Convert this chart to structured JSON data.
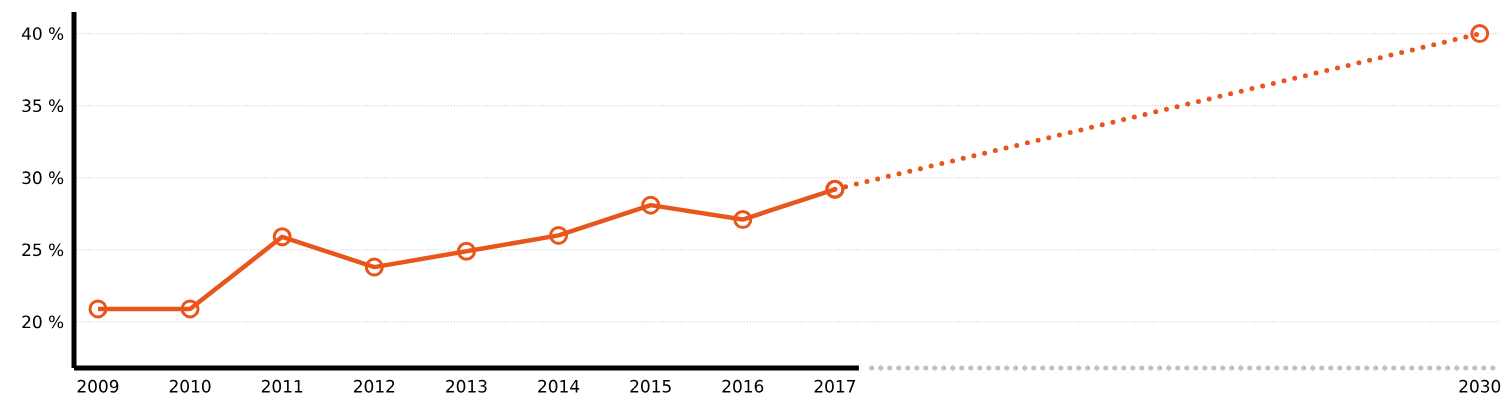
{
  "chart_data": {
    "type": "line",
    "categories": [
      "2009",
      "2010",
      "2011",
      "2012",
      "2013",
      "2014",
      "2015",
      "2016",
      "2017",
      null,
      null,
      null,
      null,
      null,
      null,
      "2030"
    ],
    "series": [
      {
        "color": "#e8561c",
        "line_style": "solid",
        "marker": "circle",
        "values": [
          20.9,
          20.9,
          25.9,
          23.8,
          24.9,
          26.0,
          28.1,
          27.1,
          29.2,
          null,
          null,
          null,
          null,
          null,
          null,
          null
        ]
      },
      {
        "color": "#e8561c",
        "line_style": "dotted",
        "marker": "circle",
        "values": [
          null,
          null,
          null,
          null,
          null,
          null,
          null,
          null,
          29.2,
          null,
          null,
          null,
          null,
          null,
          null,
          40
        ]
      }
    ],
    "ylim": [
      16.8,
      41.5
    ],
    "yticks": [
      {
        "value": 20,
        "label": "20 %"
      },
      {
        "value": 25,
        "label": "25 %"
      },
      {
        "value": 30,
        "label": "30 %"
      },
      {
        "value": 35,
        "label": "35 %"
      },
      {
        "value": 40,
        "label": "40 %"
      }
    ],
    "grid": "y"
  }
}
